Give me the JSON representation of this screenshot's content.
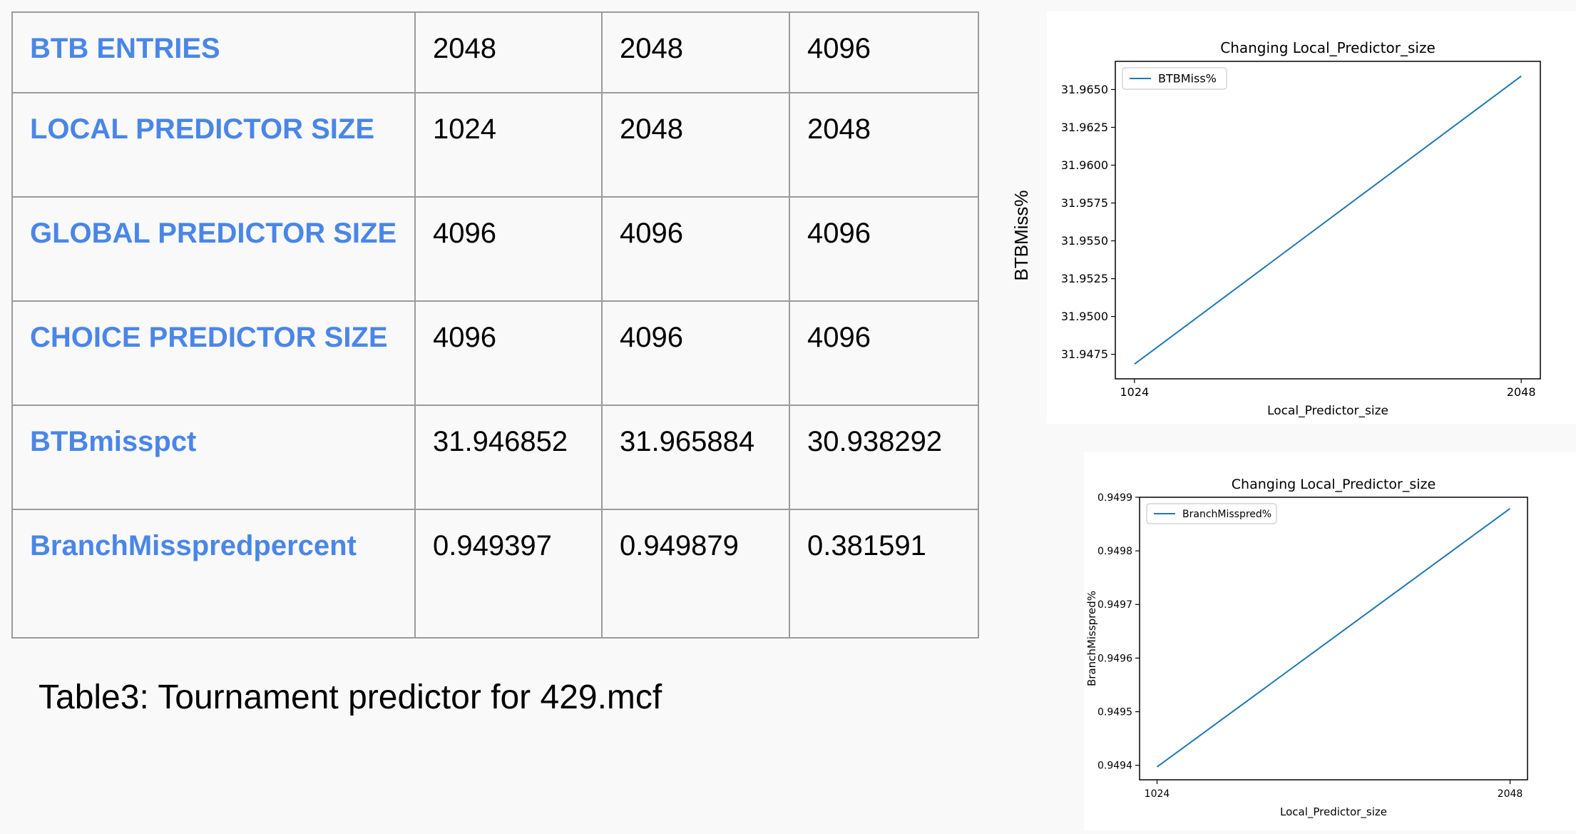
{
  "table": {
    "rows": [
      {
        "label": "BTB ENTRIES",
        "values": [
          "2048",
          "2048",
          "4096"
        ]
      },
      {
        "label": "LOCAL PREDICTOR SIZE",
        "values": [
          "1024",
          "2048",
          "2048"
        ]
      },
      {
        "label": "GLOBAL PREDICTOR SIZE",
        "values": [
          "4096",
          "4096",
          "4096"
        ]
      },
      {
        "label": "CHOICE PREDICTOR SIZE",
        "values": [
          "4096",
          "4096",
          "4096"
        ]
      },
      {
        "label": "BTBmisspct",
        "values": [
          "31.946852",
          "31.965884",
          "30.938292"
        ]
      },
      {
        "label": "BranchMisspredpercent",
        "values": [
          "0.949397",
          "0.949879",
          "0.381591"
        ]
      }
    ]
  },
  "caption": "Table3: Tournament predictor for 429.mcf",
  "side_ylabel": "BTBMiss%",
  "chart_data": [
    {
      "type": "line",
      "title": "Changing Local_Predictor_size",
      "xlabel": "Local_Predictor_size",
      "ylabel": "BTBMiss%",
      "x": [
        1024,
        2048
      ],
      "xticks": [
        "1024",
        "2048"
      ],
      "yticks": [
        "31.9475",
        "31.9500",
        "31.9525",
        "31.9550",
        "31.9575",
        "31.9600",
        "31.9625",
        "31.9650"
      ],
      "series": [
        {
          "name": "BTBMiss%",
          "values": [
            31.946852,
            31.965884
          ]
        }
      ],
      "ylim": [
        31.94588,
        31.96686
      ],
      "legend": "top-left",
      "grid": false,
      "color": "#1f77b4"
    },
    {
      "type": "line",
      "title": "Changing Local_Predictor_size",
      "xlabel": "Local_Predictor_size",
      "ylabel": "BranchMisspred%",
      "x": [
        1024,
        2048
      ],
      "xticks": [
        "1024",
        "2048"
      ],
      "yticks": [
        "0.9494",
        "0.9495",
        "0.9496",
        "0.9497",
        "0.9498",
        "0.9499"
      ],
      "series": [
        {
          "name": "BranchMisspred%",
          "values": [
            0.949397,
            0.949879
          ]
        }
      ],
      "ylim": [
        0.949373,
        0.9499
      ],
      "legend": "top-left",
      "grid": false,
      "color": "#1f77b4"
    }
  ]
}
